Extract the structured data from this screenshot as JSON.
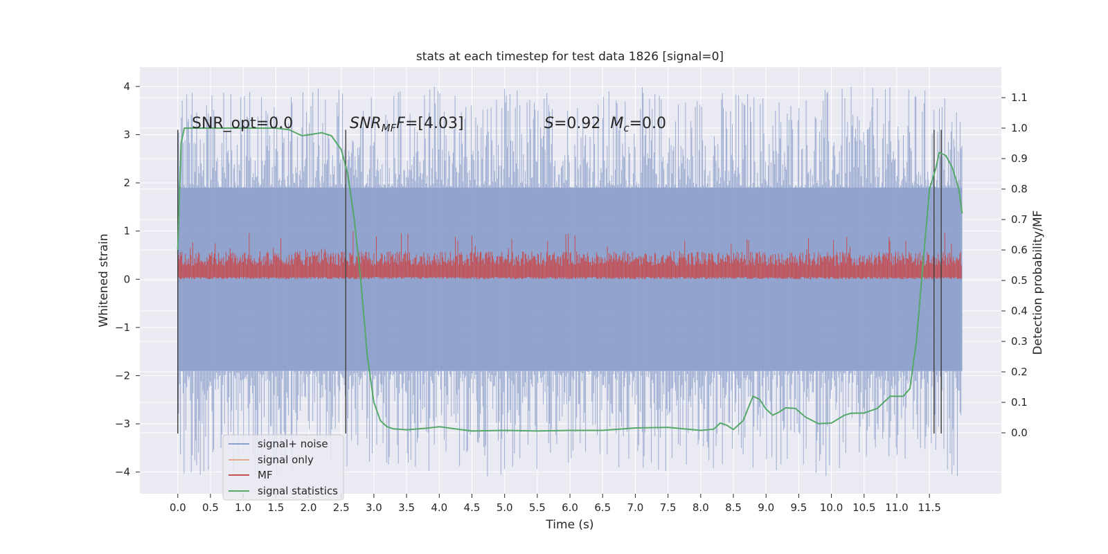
{
  "chart_data": {
    "type": "line",
    "title": "stats at each timestep for test data 1826 [signal=0]",
    "xlabel": "Time (s)",
    "ylabel": "Whitened strain",
    "ylabel_right": "Detection probability/MF",
    "xlim": [
      -0.58,
      12.6
    ],
    "ylim": [
      -4.45,
      4.4
    ],
    "ylim_right": [
      -0.2,
      1.2
    ],
    "x_ticks": [
      0.0,
      0.5,
      1.0,
      1.5,
      2.0,
      2.5,
      3.0,
      3.5,
      4.0,
      4.5,
      5.0,
      5.5,
      6.0,
      6.5,
      7.0,
      7.5,
      8.0,
      8.5,
      9.0,
      9.5,
      10.0,
      10.5,
      11.0,
      11.5
    ],
    "x_tick_labels": [
      "0.0",
      "0.5",
      "1.0",
      "1.5",
      "2.0",
      "2.5",
      "3.0",
      "3.5",
      "4.0",
      "4.5",
      "5.0",
      "5.5",
      "6.0",
      "6.5",
      "7.0",
      "7.5",
      "8.0",
      "8.5",
      "9.0",
      "9.5",
      "10.0",
      "10.5",
      "11.0",
      "11.5"
    ],
    "y_ticks": [
      4,
      3,
      2,
      1,
      0,
      -1,
      -2,
      -3,
      -4
    ],
    "y_tick_labels": [
      "4",
      "3",
      "2",
      "1",
      "0",
      "−1",
      "−2",
      "−3",
      "−4"
    ],
    "y_right_ticks": [
      1.1,
      1.0,
      0.9,
      0.8,
      0.7,
      0.6,
      0.5,
      0.4,
      0.3,
      0.2,
      0.1,
      0.0
    ],
    "y_right_tick_labels": [
      "1.1",
      "1.0",
      "0.9",
      "0.8",
      "0.7",
      "0.6",
      "0.5",
      "0.4",
      "0.3",
      "0.2",
      "0.1",
      "0.0"
    ],
    "grid": true,
    "legend_position": "lower-left",
    "series": [
      {
        "name": "signal+ noise",
        "color": "#8da0cb",
        "kind": "noise",
        "x_range": [
          0.0,
          12.0
        ],
        "typical_range": [
          -1.9,
          1.9
        ],
        "extreme_range": [
          -4.1,
          4.0
        ]
      },
      {
        "name": "signal only",
        "color": "#e9a98b",
        "kind": "flat",
        "values": []
      },
      {
        "name": "MF",
        "color": "#c44e52",
        "kind": "noise",
        "x_range": [
          0.0,
          12.0
        ],
        "typical_range": [
          0.05,
          0.6
        ],
        "extreme_range": [
          0.0,
          1.0
        ]
      },
      {
        "name": "signal statistics",
        "color": "#55a868",
        "kind": "line",
        "axis": "right",
        "x": [
          0.0,
          0.05,
          0.1,
          0.15,
          0.2,
          0.5,
          1.0,
          1.5,
          1.7,
          1.8,
          1.9,
          2.0,
          2.2,
          2.35,
          2.5,
          2.6,
          2.7,
          2.8,
          2.9,
          3.0,
          3.1,
          3.2,
          3.3,
          3.5,
          3.8,
          4.0,
          4.2,
          4.5,
          5.0,
          5.5,
          6.0,
          6.5,
          7.0,
          7.5,
          8.0,
          8.2,
          8.3,
          8.4,
          8.5,
          8.65,
          8.8,
          8.9,
          9.0,
          9.1,
          9.2,
          9.3,
          9.45,
          9.6,
          9.8,
          10.0,
          10.2,
          10.3,
          10.5,
          10.7,
          10.9,
          11.1,
          11.2,
          11.3,
          11.4,
          11.5,
          11.6,
          11.65,
          11.75,
          11.85,
          11.95,
          12.0
        ],
        "y": [
          0.6,
          0.95,
          1.0,
          1.0,
          1.0,
          1.0,
          1.0,
          1.0,
          0.995,
          0.985,
          0.975,
          0.978,
          0.985,
          0.975,
          0.93,
          0.85,
          0.7,
          0.5,
          0.25,
          0.1,
          0.04,
          0.02,
          0.013,
          0.01,
          0.015,
          0.02,
          0.014,
          0.006,
          0.008,
          0.006,
          0.008,
          0.008,
          0.016,
          0.018,
          0.008,
          0.012,
          0.032,
          0.025,
          0.011,
          0.04,
          0.12,
          0.11,
          0.078,
          0.058,
          0.068,
          0.082,
          0.08,
          0.052,
          0.03,
          0.032,
          0.058,
          0.064,
          0.065,
          0.08,
          0.12,
          0.12,
          0.145,
          0.3,
          0.55,
          0.8,
          0.87,
          0.92,
          0.91,
          0.87,
          0.8,
          0.72
        ]
      }
    ],
    "vlines": [
      0.0,
      2.57,
      11.57,
      11.68
    ],
    "vline_range": [
      -3.2,
      3.1
    ],
    "annotations": [
      {
        "text_id": "snr_opt",
        "x": 0.2,
        "y": 3.1
      },
      {
        "text_id": "snr_mf",
        "x": 2.6,
        "y": 3.1
      },
      {
        "text_id": "s_mc",
        "x": 5.6,
        "y": 3.1
      }
    ]
  },
  "annotations_text": {
    "snr_opt": "SNR_opt=0.0",
    "snr_mf_base": "SNR",
    "snr_mf_sub": "MF",
    "snr_mf_value": "=[4.03]",
    "s_label": "S",
    "s_value": "=0.92",
    "mc_base": "M",
    "mc_sub": "c",
    "mc_value": "=0.0"
  },
  "legend": [
    "signal+ noise",
    "signal only",
    "MF",
    "signal statistics"
  ],
  "colors": {
    "plot_bg": "#eaeaf2",
    "grid": "#ffffff",
    "noise": "#8da0cb",
    "signal_only": "#e9a98b",
    "mf": "#c44e52",
    "stats": "#55a868",
    "vline": "#444444"
  }
}
